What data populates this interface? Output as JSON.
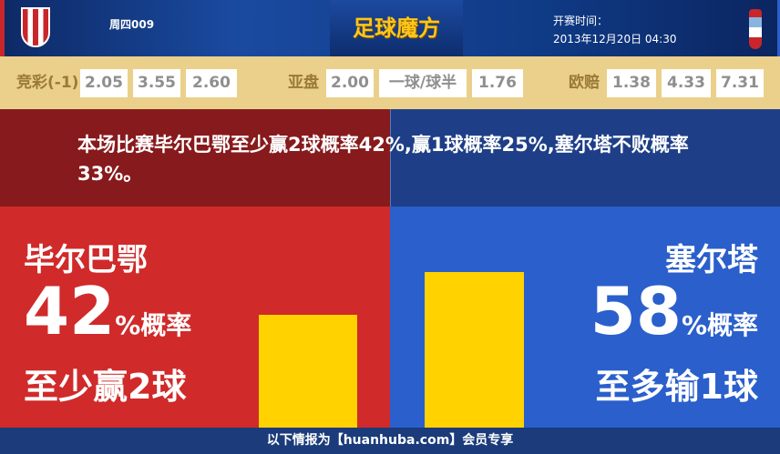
{
  "header": {
    "home_logo_text": "ATHLETIC CLUB",
    "match_code": "周四009",
    "brand": "足球魔方",
    "time_label": "开赛时间：",
    "time_value": "2013年12月20日 04:30"
  },
  "odds": {
    "jingcai_label": "竞彩(-1)",
    "jingcai": [
      "2.05",
      "3.55",
      "2.60"
    ],
    "asian_label": "亚盘",
    "asian": [
      "2.00",
      "一球/球半",
      "1.76"
    ],
    "euro_label": "欧赔",
    "euro": [
      "1.38",
      "4.33",
      "7.31"
    ]
  },
  "summary": "本场比赛毕尔巴鄂至少赢2球概率42%,赢1球概率25%,塞尔塔不败概率33%。",
  "home": {
    "name": "毕尔巴鄂",
    "pct": "42",
    "pct_suffix": "%概率",
    "desc": "至少赢2球",
    "value": 42
  },
  "away": {
    "name": "塞尔塔",
    "pct": "58",
    "pct_suffix": "%概率",
    "desc": "至多输1球",
    "value": 58
  },
  "colors": {
    "home": "#d02a2a",
    "away": "#2a5fcc",
    "bar": "#ffd200"
  },
  "footer": "以下情报为【huanhuba.com】会员专享"
}
